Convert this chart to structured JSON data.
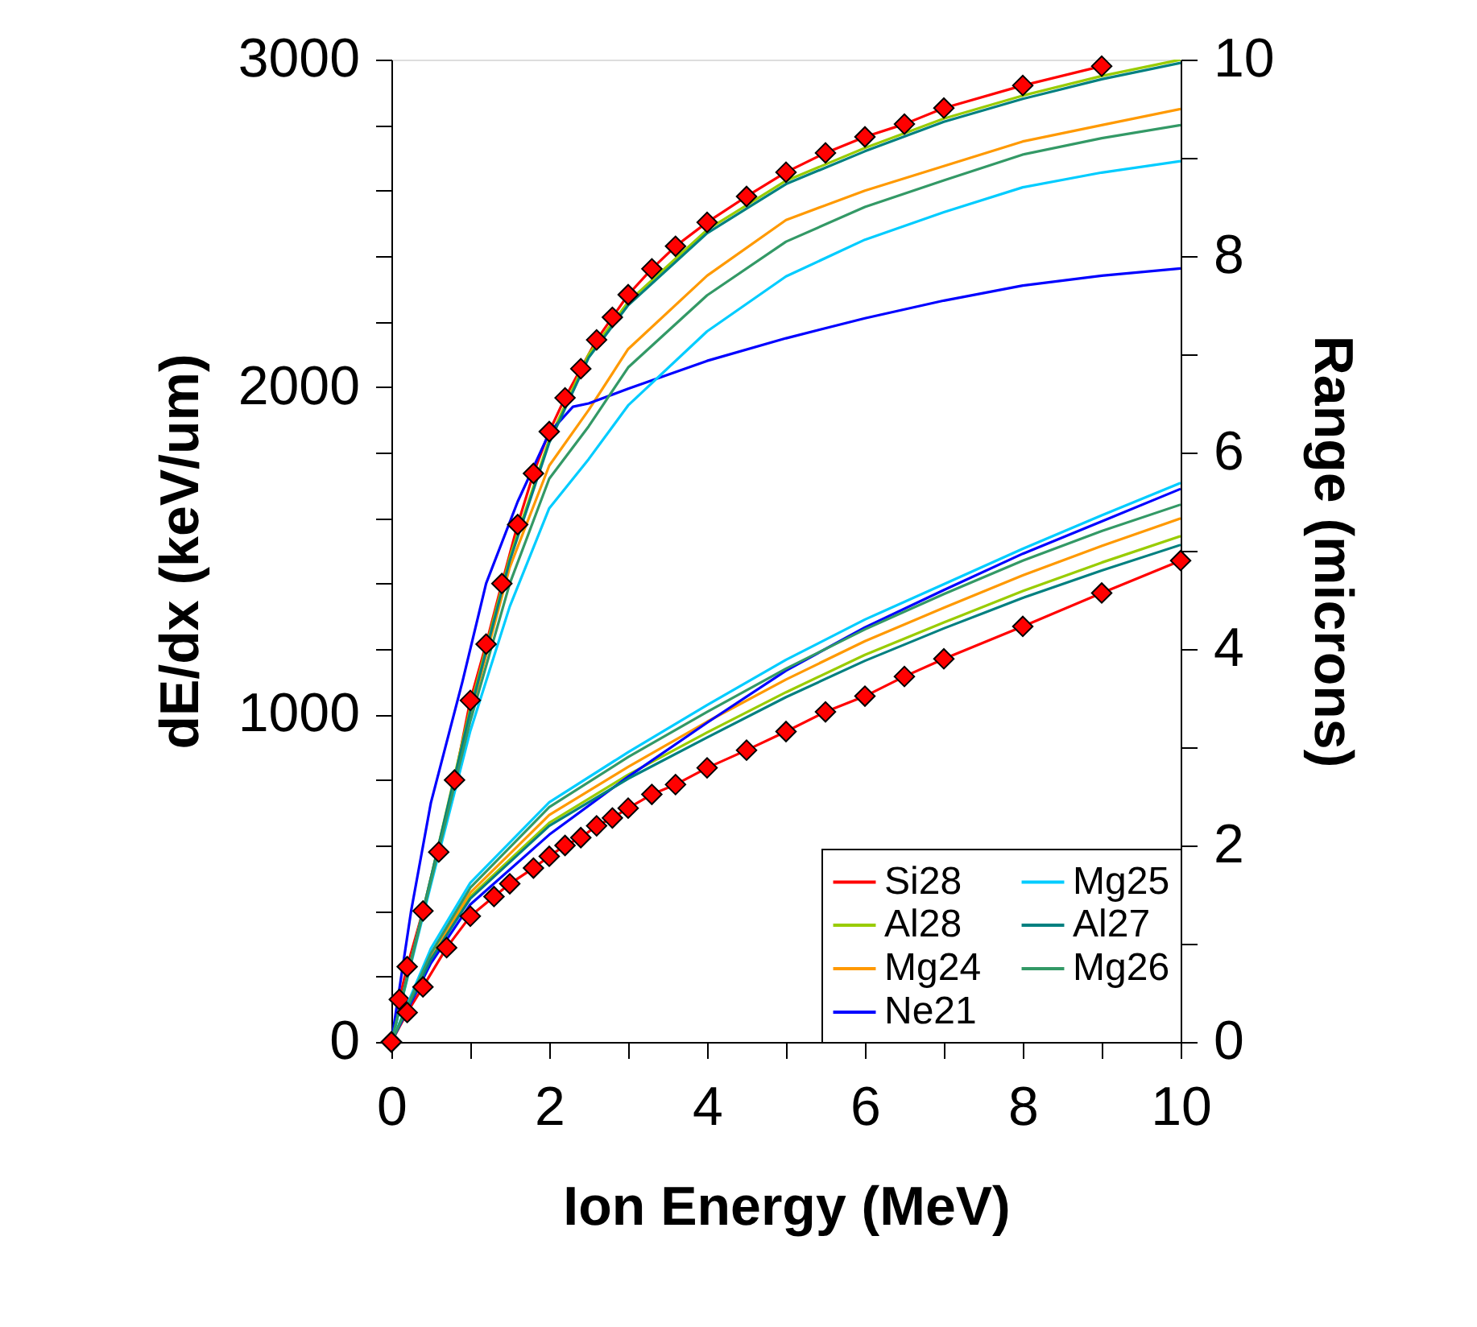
{
  "chart_data": {
    "type": "line",
    "xlabel": "Ion Energy (MeV)",
    "ylabel": "dE/dx (keV/um)",
    "y2label": "Range (microns)",
    "xlim": [
      0,
      10
    ],
    "ylim": [
      0,
      3000
    ],
    "y2lim": [
      0,
      10
    ],
    "xticks": [
      0,
      {
        "value": 1,
        "label": null
      },
      2,
      {
        "value": 3,
        "label": null
      },
      4,
      {
        "value": 5,
        "label": null
      },
      6,
      {
        "value": 7,
        "label": null
      },
      8,
      {
        "value": 9,
        "label": null
      },
      10
    ],
    "yticks": [
      0,
      {
        "value": 200,
        "label": null
      },
      {
        "value": 400,
        "label": null
      },
      {
        "value": 600,
        "label": null
      },
      {
        "value": 800,
        "label": null
      },
      1000,
      {
        "value": 1200,
        "label": null
      },
      {
        "value": 1400,
        "label": null
      },
      {
        "value": 1600,
        "label": null
      },
      {
        "value": 1800,
        "label": null
      },
      2000,
      {
        "value": 2200,
        "label": null
      },
      {
        "value": 2400,
        "label": null
      },
      {
        "value": 2600,
        "label": null
      },
      {
        "value": 2800,
        "label": null
      },
      3000
    ],
    "y2ticks": [
      0,
      {
        "value": 1,
        "label": null
      },
      2,
      {
        "value": 3,
        "label": null
      },
      4,
      {
        "value": 5,
        "label": null
      },
      6,
      {
        "value": 7,
        "label": null
      },
      8,
      {
        "value": 9,
        "label": null
      },
      10
    ],
    "grid": false,
    "legend": "bottom right",
    "series": [
      {
        "name": "Si28",
        "color": "#ff0000",
        "marker": "diamond",
        "x": [
          0,
          0.1,
          0.2,
          0.4,
          0.6,
          0.8,
          1,
          1.2,
          1.4,
          1.6,
          1.8,
          2,
          2.2,
          2.4,
          2.6,
          2.8,
          3,
          3.3,
          3.6,
          4,
          4.5,
          5,
          5.5,
          6,
          6.5,
          7,
          8,
          9
        ],
        "values": [
          0,
          130,
          230,
          400,
          580,
          800,
          1043,
          1215,
          1400,
          1580,
          1736,
          1864,
          1967,
          2056,
          2144,
          2213,
          2282,
          2361,
          2430,
          2503,
          2582,
          2656,
          2715,
          2764,
          2803,
          2852,
          2921,
          2980
        ]
      },
      {
        "name": "Al28",
        "color": "#99cc00",
        "marker": "none",
        "x": [
          0,
          0.5,
          1,
          1.5,
          2,
          2.5,
          3,
          4,
          5,
          6,
          7,
          8,
          9,
          10
        ],
        "values": [
          0,
          500,
          1020,
          1480,
          1840,
          2100,
          2260,
          2480,
          2630,
          2730,
          2820,
          2890,
          2950,
          3000
        ]
      },
      {
        "name": "Mg24",
        "color": "#ff9900",
        "marker": "none",
        "x": [
          0,
          0.5,
          1,
          1.5,
          2,
          2.5,
          3,
          4,
          5,
          6,
          7,
          8,
          9,
          10
        ],
        "values": [
          0,
          500,
          1000,
          1450,
          1760,
          1930,
          2116,
          2340,
          2510,
          2600,
          2675,
          2750,
          2800,
          2849
        ]
      },
      {
        "name": "Ne21",
        "color": "#0000ff",
        "marker": "none",
        "x": [
          0,
          0.25,
          0.5,
          0.9,
          1.2,
          1.6,
          2,
          2.3,
          2.5,
          3,
          4,
          5,
          6,
          7,
          8,
          9,
          10
        ],
        "values": [
          0,
          400,
          730,
          1100,
          1400,
          1650,
          1860,
          1940,
          1950,
          1995,
          2080,
          2149,
          2210,
          2264,
          2310,
          2340,
          2362
        ]
      },
      {
        "name": "Mg25",
        "color": "#00ccff",
        "marker": "none",
        "x": [
          0,
          0.5,
          1,
          1.5,
          2,
          2.5,
          3,
          4,
          5,
          6,
          7,
          8,
          9,
          10
        ],
        "values": [
          0,
          480,
          950,
          1330,
          1630,
          1780,
          1944,
          2170,
          2338,
          2450,
          2534,
          2610,
          2655,
          2690
        ]
      },
      {
        "name": "Al27",
        "color": "#008080",
        "marker": "none",
        "x": [
          0,
          0.5,
          1,
          1.5,
          2,
          2.5,
          3,
          4,
          5,
          6,
          7,
          8,
          9,
          10
        ],
        "values": [
          0,
          500,
          1010,
          1470,
          1830,
          2090,
          2250,
          2470,
          2620,
          2720,
          2810,
          2880,
          2940,
          2990
        ]
      },
      {
        "name": "Mg26",
        "color": "#339966",
        "marker": "none",
        "x": [
          0,
          0.5,
          1,
          1.5,
          2,
          2.5,
          3,
          4,
          5,
          6,
          7,
          8,
          9,
          10
        ],
        "values": [
          0,
          490,
          980,
          1400,
          1720,
          1880,
          2060,
          2280,
          2444,
          2550,
          2631,
          2710,
          2760,
          2800
        ]
      },
      {
        "color": "#ff0000",
        "marker": "diamond",
        "axis": "y2",
        "x": [
          0,
          0.2,
          0.4,
          0.7,
          1,
          1.3,
          1.5,
          1.8,
          2,
          2.2,
          2.4,
          2.6,
          2.8,
          3,
          3.3,
          3.6,
          4,
          4.5,
          5,
          5.5,
          6,
          6.5,
          7,
          8,
          9,
          10
        ],
        "values": [
          0,
          0.3,
          0.56,
          0.96,
          1.28,
          1.48,
          1.61,
          1.77,
          1.89,
          2.0,
          2.08,
          2.2,
          2.28,
          2.38,
          2.52,
          2.62,
          2.79,
          2.97,
          3.16,
          3.36,
          3.52,
          3.72,
          3.9,
          4.23,
          4.57,
          4.9
        ]
      },
      {
        "color": "#99cc00",
        "marker": "none",
        "axis": "y2",
        "x": [
          0,
          0.5,
          1,
          2,
          3,
          4,
          5,
          6,
          7,
          8,
          9,
          10
        ],
        "values": [
          0,
          0.85,
          1.48,
          2.23,
          2.72,
          3.15,
          3.56,
          3.94,
          4.27,
          4.59,
          4.88,
          5.15
        ]
      },
      {
        "color": "#ff9900",
        "marker": "none",
        "axis": "y2",
        "x": [
          0,
          0.5,
          1,
          2,
          3,
          4,
          5,
          6,
          7,
          8,
          9,
          10
        ],
        "values": [
          0,
          0.88,
          1.52,
          2.31,
          2.8,
          3.26,
          3.69,
          4.08,
          4.42,
          4.75,
          5.05,
          5.33
        ]
      },
      {
        "color": "#0000ff",
        "marker": "none",
        "axis": "y2",
        "x": [
          0,
          0.5,
          1,
          2,
          3,
          4,
          5,
          6,
          7,
          8,
          9,
          10
        ],
        "values": [
          0,
          0.8,
          1.4,
          2.11,
          2.7,
          3.25,
          3.78,
          4.22,
          4.6,
          4.97,
          5.3,
          5.63
        ]
      },
      {
        "color": "#00ccff",
        "marker": "none",
        "axis": "y2",
        "x": [
          0,
          0.5,
          1,
          2,
          3,
          4,
          5,
          6,
          7,
          8,
          9,
          10
        ],
        "values": [
          0,
          0.95,
          1.62,
          2.44,
          2.95,
          3.43,
          3.89,
          4.3,
          4.66,
          5.02,
          5.36,
          5.69
        ]
      },
      {
        "color": "#008080",
        "marker": "none",
        "axis": "y2",
        "x": [
          0,
          0.5,
          1,
          2,
          3,
          4,
          5,
          6,
          7,
          8,
          9,
          10
        ],
        "values": [
          0,
          0.84,
          1.46,
          2.2,
          2.68,
          3.1,
          3.51,
          3.88,
          4.21,
          4.52,
          4.8,
          5.06
        ]
      },
      {
        "color": "#339966",
        "marker": "none",
        "axis": "y2",
        "x": [
          0,
          0.5,
          1,
          2,
          3,
          4,
          5,
          6,
          7,
          8,
          9,
          10
        ],
        "values": [
          0,
          0.9,
          1.57,
          2.39,
          2.9,
          3.36,
          3.8,
          4.2,
          4.56,
          4.9,
          5.2,
          5.47
        ]
      }
    ]
  }
}
